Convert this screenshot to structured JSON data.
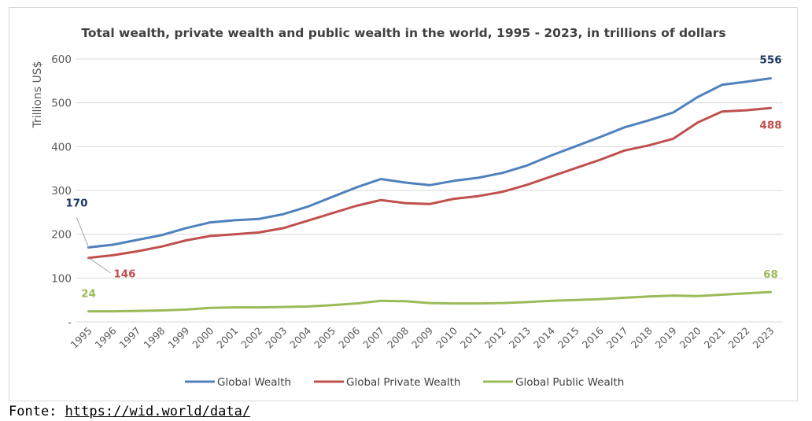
{
  "source": {
    "prefix": "Fonte:",
    "link_text": "https://wid.world/data/"
  },
  "chart_data": {
    "type": "line",
    "title": "Total wealth, private wealth and public wealth in the world, 1995 - 2023, in trillions of dollars",
    "xlabel": "",
    "ylabel": "Trillions US$",
    "ylim": [
      0,
      600
    ],
    "yticks": [
      0,
      100,
      200,
      300,
      400,
      500,
      600
    ],
    "ytick_labels": [
      "-",
      "100",
      "200",
      "300",
      "400",
      "500",
      "600"
    ],
    "grid": true,
    "legend_position": "bottom",
    "x": [
      "1995",
      "1996",
      "1997",
      "1998",
      "1999",
      "2000",
      "2001",
      "2002",
      "2003",
      "2004",
      "2005",
      "2006",
      "2007",
      "2008",
      "2009",
      "2010",
      "2011",
      "2012",
      "2013",
      "2014",
      "2015",
      "2016",
      "2017",
      "2018",
      "2019",
      "2020",
      "2021",
      "2022",
      "2023"
    ],
    "series": [
      {
        "name": "Global Wealth",
        "color": "#4f81bd",
        "label_color": "#1f3864",
        "values": [
          170,
          176,
          187,
          198,
          214,
          227,
          232,
          235,
          246,
          263,
          285,
          307,
          326,
          318,
          312,
          322,
          329,
          340,
          357,
          380,
          401,
          422,
          444,
          460,
          478,
          513,
          541,
          548,
          556
        ],
        "labels": [
          {
            "index": 0,
            "text": "170"
          },
          {
            "index": 28,
            "text": "556"
          }
        ]
      },
      {
        "name": "Global Private Wealth",
        "color": "#c0504d",
        "label_color": "#c0504d",
        "values": [
          146,
          152,
          161,
          172,
          186,
          196,
          200,
          204,
          214,
          231,
          248,
          265,
          278,
          271,
          269,
          281,
          287,
          297,
          313,
          332,
          351,
          370,
          391,
          403,
          418,
          455,
          480,
          483,
          488
        ],
        "labels": [
          {
            "index": 0,
            "text": "146"
          },
          {
            "index": 28,
            "text": "488"
          }
        ]
      },
      {
        "name": "Global Public Wealth",
        "color": "#9bbb59",
        "label_color": "#9bbb59",
        "values": [
          24,
          24,
          25,
          26,
          28,
          32,
          33,
          33,
          34,
          35,
          38,
          42,
          48,
          47,
          43,
          42,
          42,
          43,
          45,
          48,
          50,
          52,
          55,
          58,
          60,
          59,
          62,
          65,
          68
        ],
        "labels": [
          {
            "index": 0,
            "text": "24"
          },
          {
            "index": 28,
            "text": "68"
          }
        ]
      }
    ]
  }
}
